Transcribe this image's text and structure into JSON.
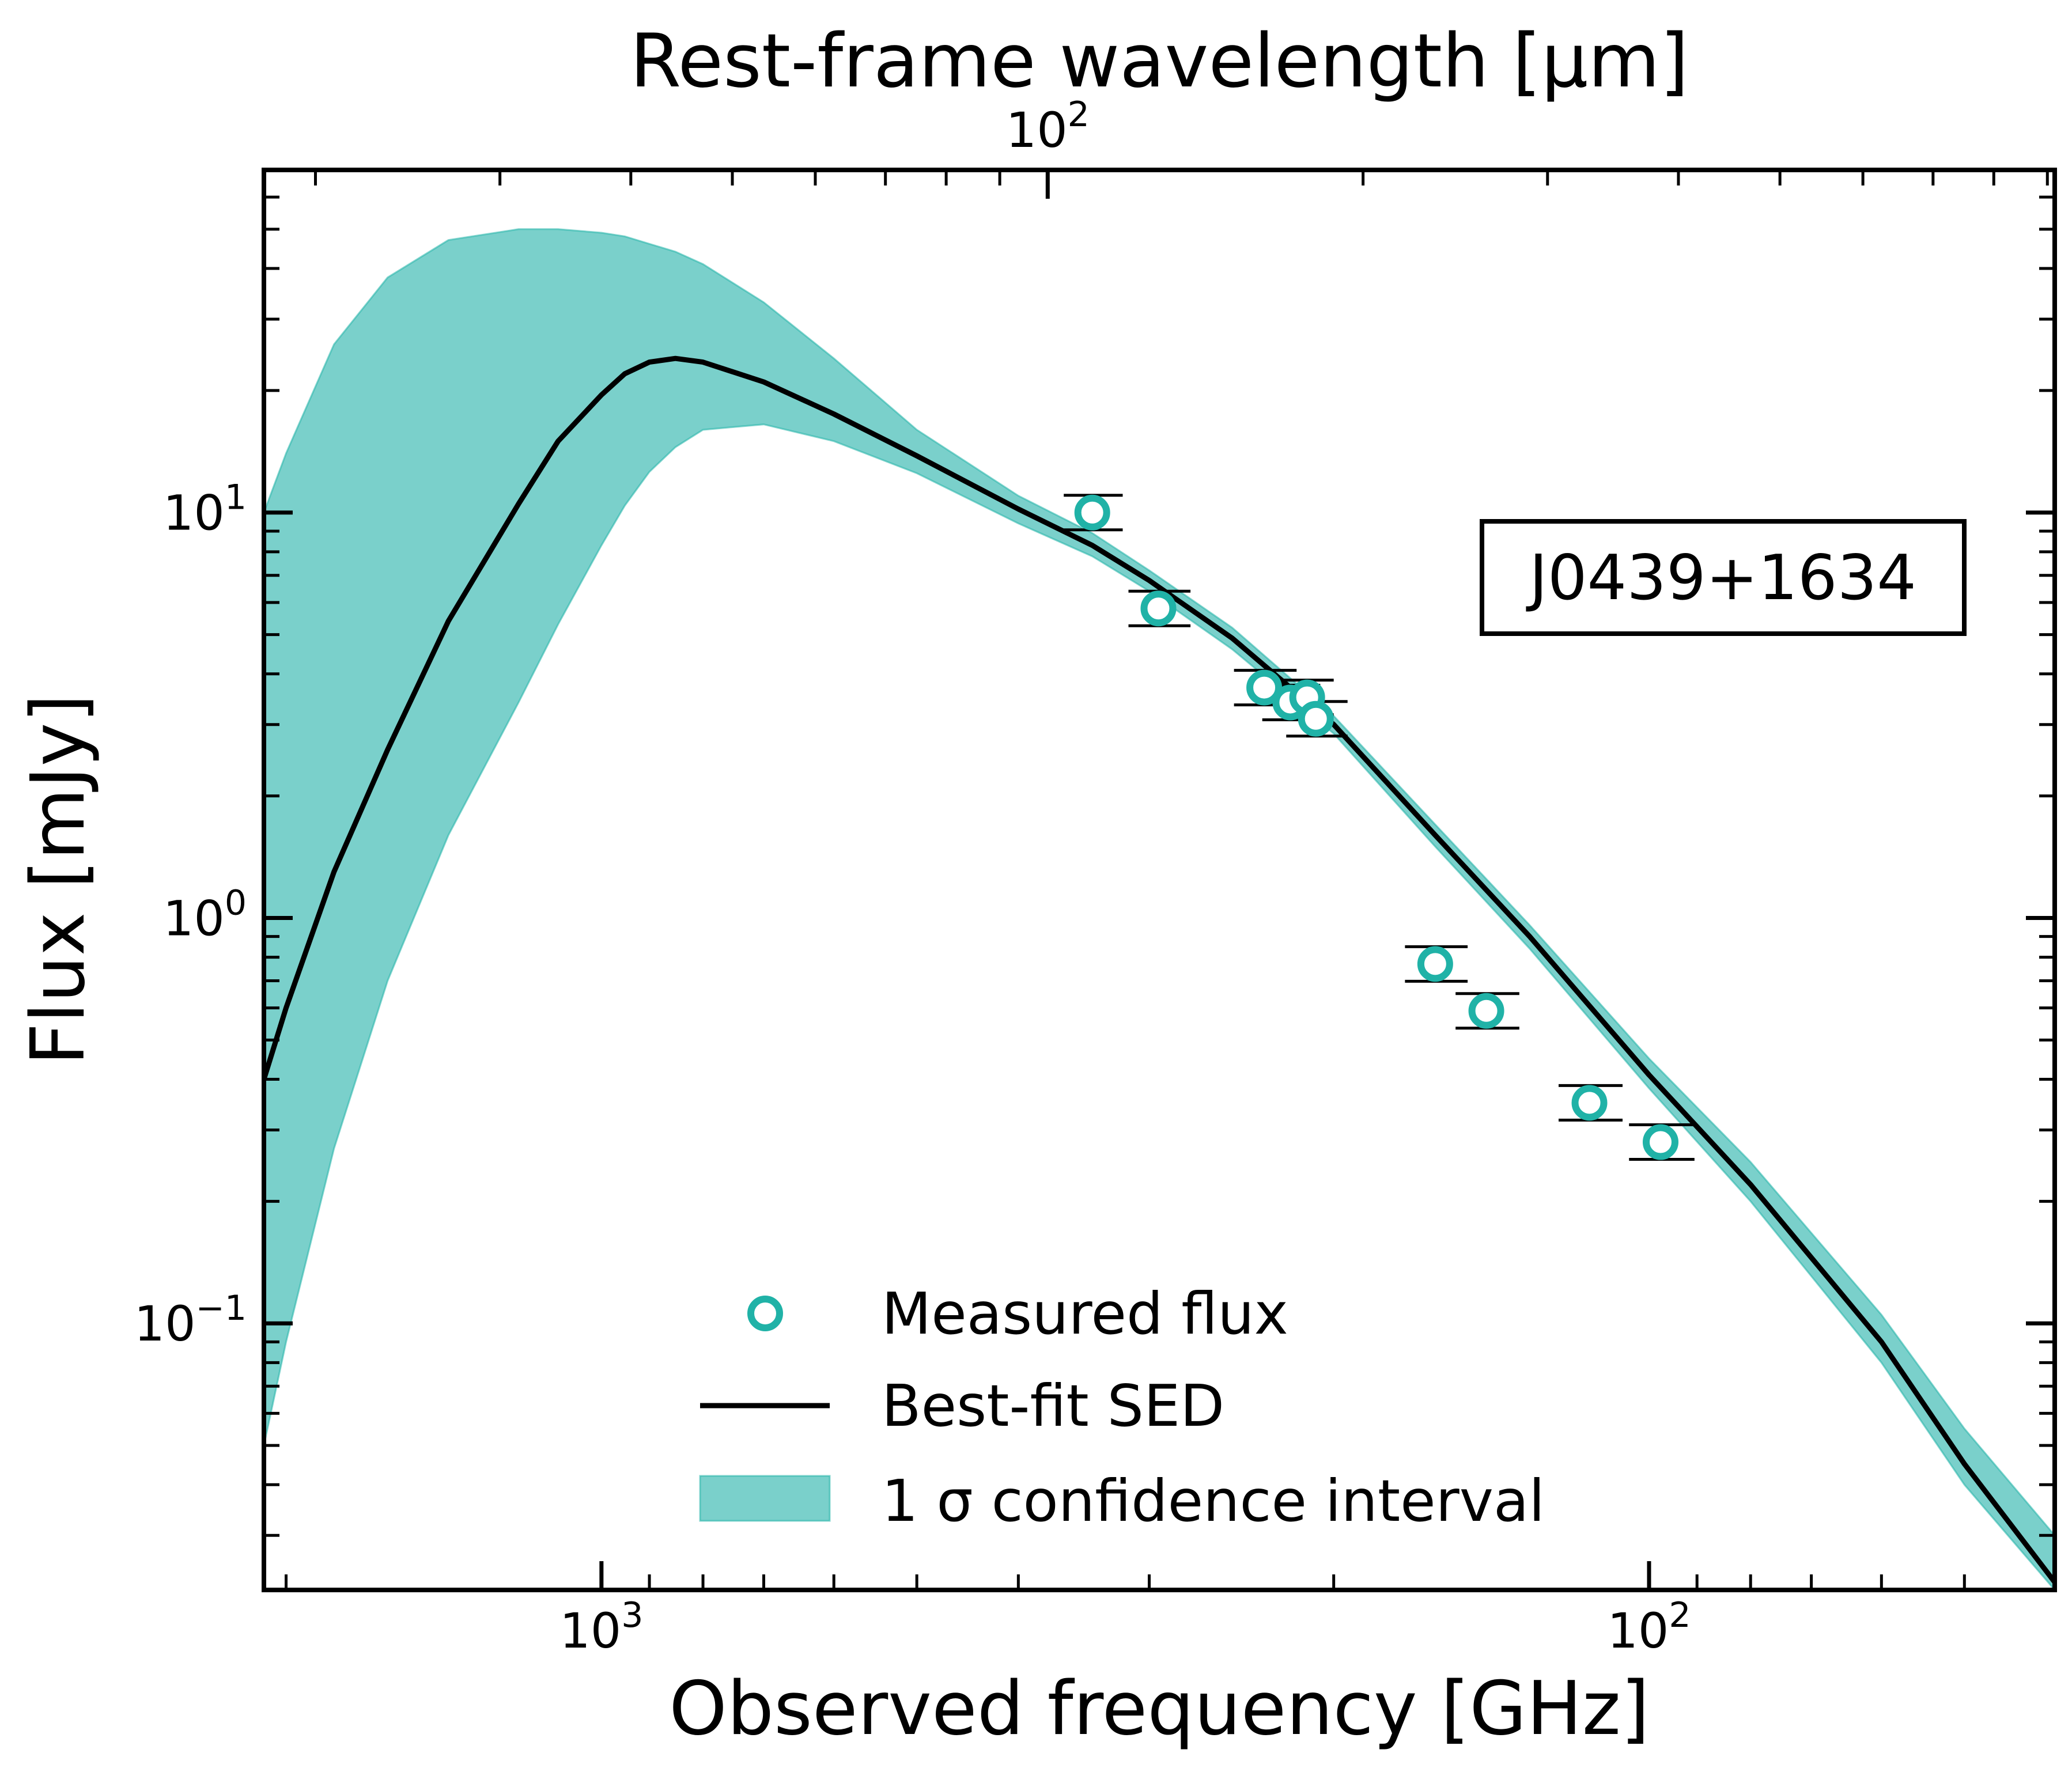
{
  "colors": {
    "teal": "#20b2a7",
    "band_fill": "#7ad0cb",
    "axes": "#000000",
    "background": "#ffffff"
  },
  "chart_data": {
    "type": "scatter",
    "title": "",
    "target_label": "J0439+1634",
    "xlabel": "Observed frequency [GHz]",
    "xlabel_top": "Rest-frame wavelength [μm]",
    "ylabel": "Flux [mJy]",
    "x_scale": "log",
    "x_direction": "decreasing",
    "y_scale": "log",
    "xlim": [
      2100,
      41
    ],
    "ylim": [
      0.022,
      70
    ],
    "x_tick_labels": [
      {
        "value": 1000,
        "base": "10",
        "exp": "3"
      },
      {
        "value": 100,
        "base": "10",
        "exp": "2"
      }
    ],
    "y_tick_labels": [
      {
        "value": 0.1,
        "base": "10",
        "exp": "−1"
      },
      {
        "value": 1,
        "base": "10",
        "exp": "0"
      },
      {
        "value": 10,
        "base": "10",
        "exp": "1"
      }
    ],
    "top_tick_labels": [
      {
        "freq": 375,
        "base": "10",
        "exp": "2"
      }
    ],
    "legend": {
      "position": "lower-center",
      "entries": [
        "Measured flux",
        "Best-fit SED",
        "1 σ confidence interval"
      ]
    },
    "series": [
      {
        "name": "Measured flux",
        "kind": "points",
        "x": [
          340,
          294,
          233,
          220,
          212,
          208,
          160,
          143,
          114,
          97.5
        ],
        "y": [
          10.0,
          5.8,
          3.7,
          3.4,
          3.5,
          3.1,
          0.77,
          0.59,
          0.35,
          0.28
        ],
        "xerr": [
          22,
          20,
          16,
          14,
          12,
          14,
          11,
          10,
          8,
          7
        ]
      },
      {
        "name": "Best-fit SED",
        "kind": "line",
        "x": [
          2100,
          2000,
          1800,
          1600,
          1400,
          1200,
          1100,
          1000,
          950,
          900,
          850,
          800,
          700,
          600,
          500,
          400,
          340,
          300,
          250,
          200,
          160,
          130,
          100,
          80,
          60,
          50,
          41
        ],
        "y": [
          0.4,
          0.6,
          1.3,
          2.6,
          5.4,
          10.5,
          15,
          19.5,
          22,
          23.5,
          24,
          23.5,
          21,
          17.5,
          13.8,
          10.2,
          8.3,
          6.8,
          4.9,
          3.0,
          1.6,
          0.9,
          0.41,
          0.22,
          0.09,
          0.045,
          0.023
        ]
      },
      {
        "name": "1 σ confidence interval",
        "kind": "band",
        "x": [
          2100,
          2000,
          1800,
          1600,
          1400,
          1200,
          1100,
          1000,
          950,
          900,
          850,
          800,
          700,
          600,
          500,
          400,
          340,
          300,
          250,
          200,
          160,
          130,
          100,
          80,
          60,
          50,
          41
        ],
        "lower": [
          0.05,
          0.09,
          0.27,
          0.7,
          1.6,
          3.4,
          5.3,
          8.3,
          10.4,
          12.6,
          14.5,
          16,
          16.5,
          15,
          12.5,
          9.4,
          7.8,
          6.4,
          4.6,
          2.85,
          1.5,
          0.84,
          0.38,
          0.2,
          0.08,
          0.04,
          0.022
        ],
        "upper": [
          10,
          14,
          26,
          38,
          47,
          50,
          50,
          49,
          48,
          46,
          44,
          41,
          33,
          24,
          16,
          11,
          8.9,
          7.2,
          5.2,
          3.15,
          1.7,
          0.96,
          0.45,
          0.25,
          0.105,
          0.055,
          0.03
        ]
      }
    ]
  }
}
